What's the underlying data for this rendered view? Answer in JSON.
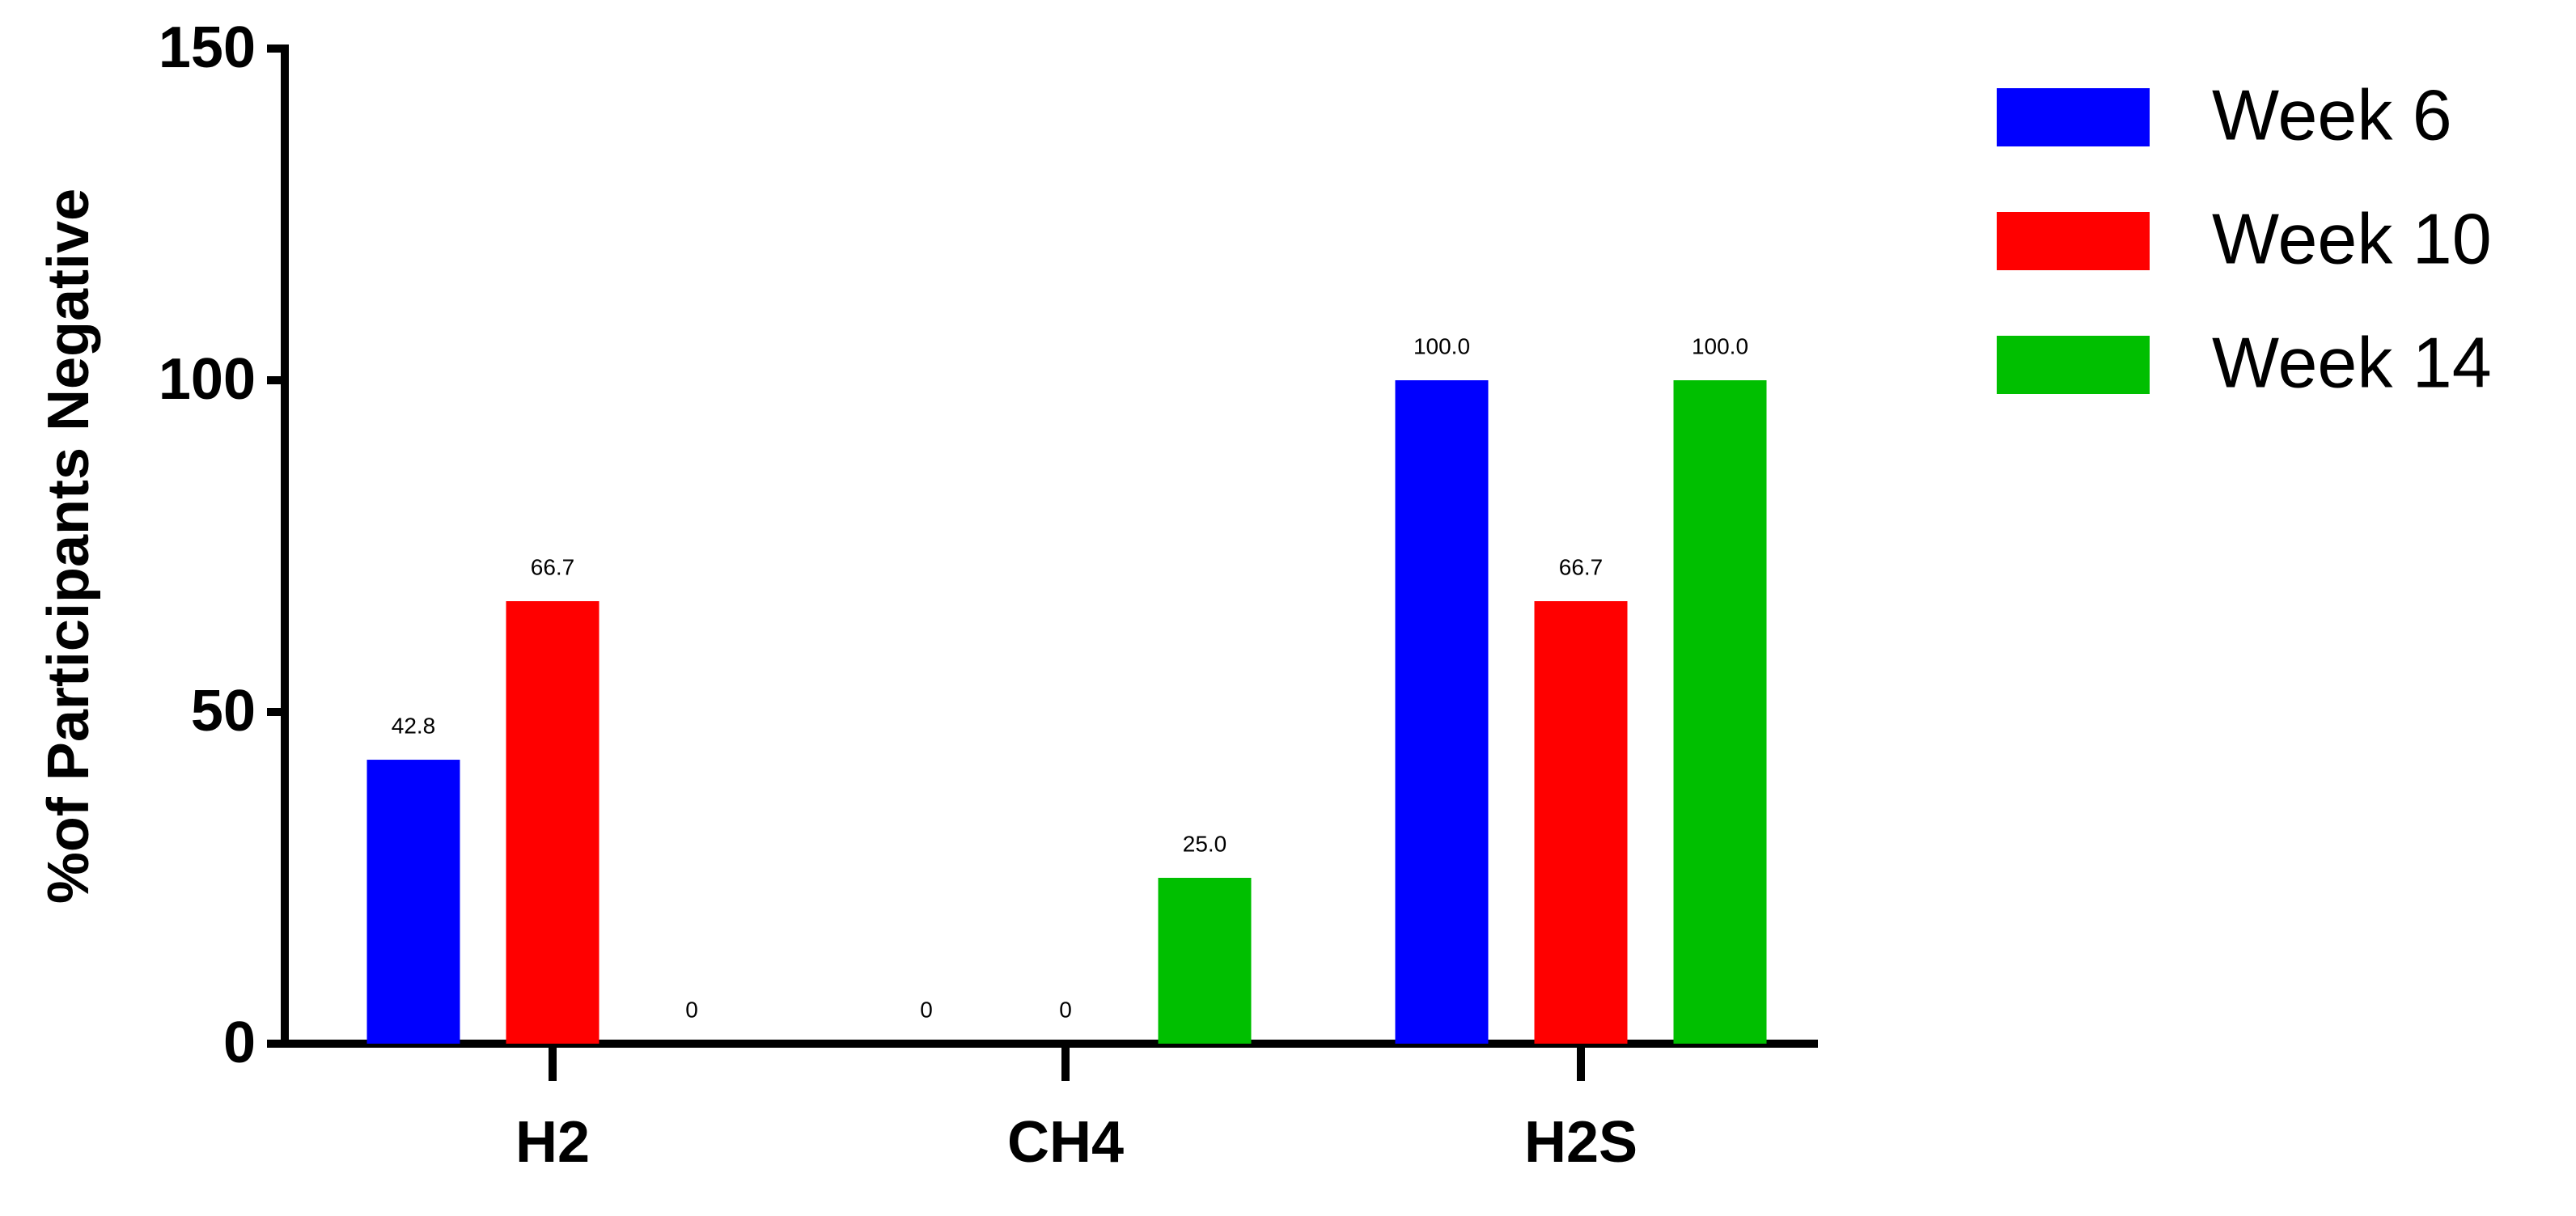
{
  "chart_data": {
    "type": "bar",
    "y_label": "%of Participants Negative",
    "categories": [
      "H2",
      "CH4",
      "H2S"
    ],
    "series": [
      {
        "name": "Week 6",
        "color": "#0000ff",
        "values": [
          42.8,
          0,
          100
        ],
        "value_labels": [
          "42.8",
          "0",
          "100.0"
        ]
      },
      {
        "name": "Week 10",
        "color": "#ff0000",
        "values": [
          66.7,
          0,
          66.7
        ],
        "value_labels": [
          "66.7",
          "0",
          "66.7"
        ]
      },
      {
        "name": "Week 14",
        "color": "#00bf00",
        "values": [
          0,
          25,
          100
        ],
        "value_labels": [
          "0",
          "25.0",
          "100.0"
        ]
      }
    ],
    "ylim": [
      0,
      150
    ],
    "yticks": [
      0,
      50,
      100,
      150
    ],
    "legend": "right"
  }
}
